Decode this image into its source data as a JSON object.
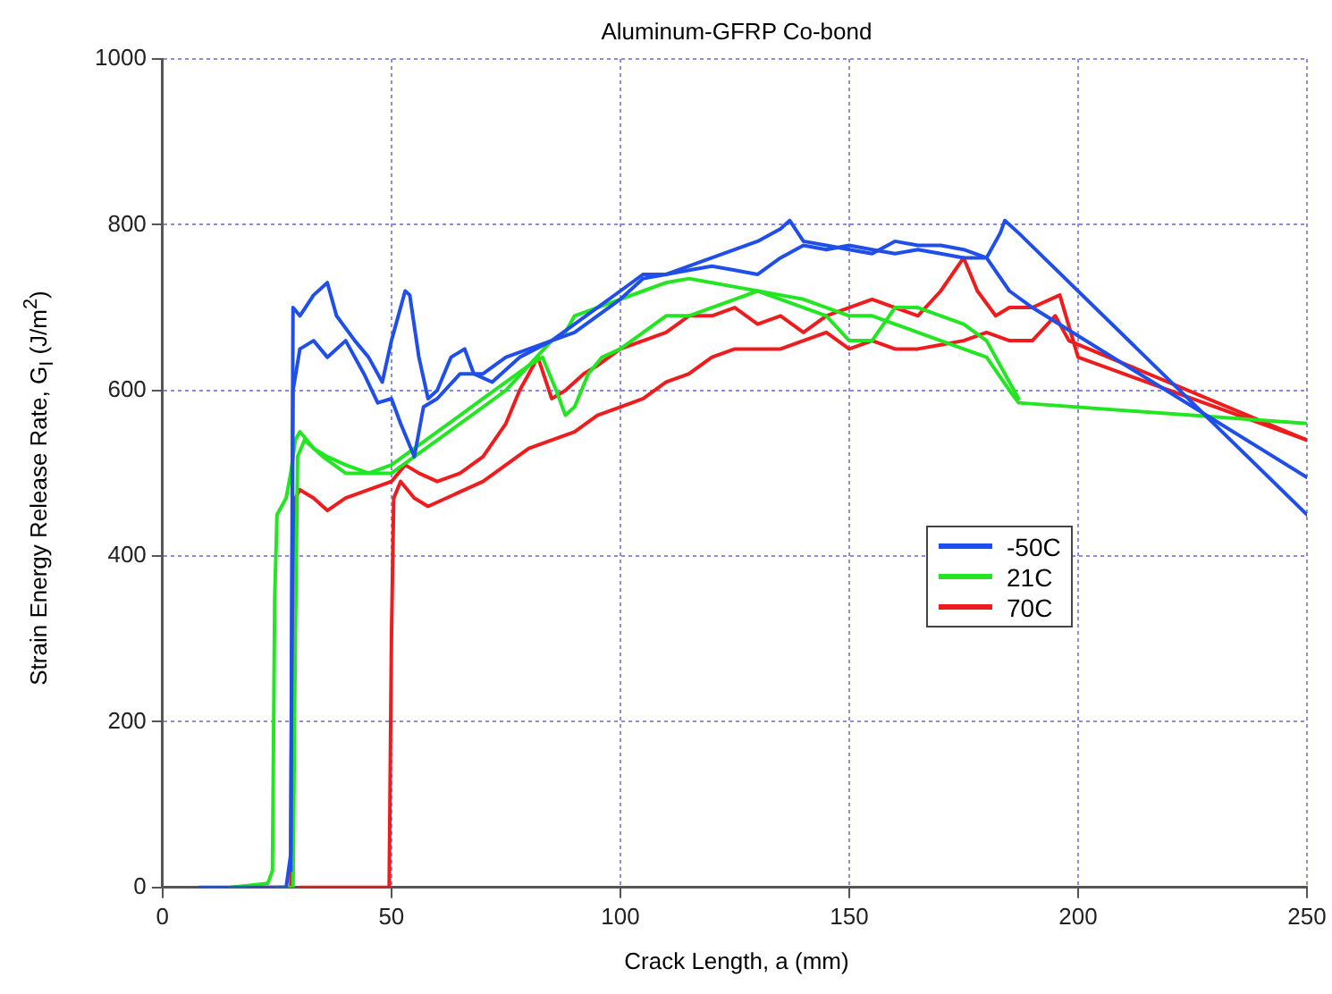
{
  "chart_data": {
    "type": "line",
    "title": "Aluminum-GFRP Co-bond",
    "xlabel": "Crack Length, a (mm)",
    "ylabel": "Strain Energy Release Rate, G$_{I}$ (J/m$^{2}$)",
    "xlim": [
      0,
      250
    ],
    "xticks": [
      0,
      50,
      100,
      150,
      200,
      250
    ],
    "ylim": [
      0,
      1000
    ],
    "yticks": [
      0,
      200,
      400,
      600,
      800,
      1000
    ],
    "grid": true,
    "legend": "right",
    "marker": "none",
    "line_style": "solid",
    "series": [
      {
        "name": "-50C",
        "color": "#1f4fe8",
        "x": [
          8,
          27,
          28,
          28.5,
          30,
          33,
          36,
          38,
          42,
          45,
          48,
          50,
          53,
          54,
          56,
          58,
          60,
          63,
          66,
          68,
          72,
          78,
          85,
          90,
          95,
          100,
          105,
          110,
          115,
          120,
          125,
          130,
          135,
          137,
          140,
          145,
          150,
          155,
          160,
          165,
          170,
          175,
          180,
          183,
          184,
          187,
          250
        ],
        "values": [
          0,
          0,
          40,
          700,
          690,
          715,
          730,
          690,
          660,
          640,
          610,
          660,
          720,
          715,
          640,
          590,
          600,
          640,
          650,
          620,
          610,
          640,
          660,
          680,
          700,
          720,
          740,
          740,
          750,
          760,
          770,
          780,
          795,
          805,
          780,
          775,
          770,
          765,
          780,
          775,
          775,
          770,
          760,
          790,
          805,
          790,
          450
        ]
      },
      {
        "color": "#1f4fe8",
        "x": [
          28,
          28.5,
          30,
          33,
          36,
          40,
          44,
          47,
          50,
          52,
          55,
          57,
          60,
          65,
          70,
          75,
          80,
          85,
          90,
          95,
          100,
          105,
          110,
          115,
          120,
          125,
          130,
          135,
          140,
          145,
          150,
          155,
          160,
          165,
          170,
          175,
          180,
          185,
          190,
          250
        ],
        "values": [
          20,
          600,
          650,
          660,
          640,
          660,
          620,
          585,
          590,
          560,
          520,
          580,
          590,
          620,
          620,
          640,
          650,
          660,
          670,
          690,
          710,
          735,
          740,
          745,
          750,
          745,
          740,
          760,
          775,
          770,
          775,
          770,
          765,
          770,
          765,
          760,
          760,
          720,
          700,
          495
        ]
      },
      {
        "name": "21C",
        "color": "#22e622",
        "x": [
          15,
          23,
          24,
          24.5,
          25,
          27,
          28,
          29,
          30,
          33,
          36,
          40,
          45,
          50,
          55,
          60,
          65,
          70,
          75,
          80,
          85,
          88,
          90,
          95,
          100,
          105,
          110,
          115,
          120,
          125,
          130,
          135,
          140,
          145,
          150,
          155,
          160,
          165,
          170,
          175,
          180,
          185,
          187,
          250
        ],
        "values": [
          0,
          5,
          20,
          350,
          450,
          470,
          500,
          540,
          550,
          530,
          520,
          510,
          500,
          500,
          520,
          540,
          560,
          580,
          600,
          630,
          660,
          670,
          690,
          700,
          710,
          720,
          730,
          735,
          730,
          725,
          720,
          715,
          710,
          700,
          690,
          690,
          680,
          670,
          660,
          650,
          640,
          600,
          585,
          560
        ]
      },
      {
        "color": "#22e622",
        "x": [
          25,
          28.5,
          29,
          29.5,
          31,
          35,
          40,
          45,
          50,
          55,
          60,
          65,
          70,
          75,
          80,
          83,
          86,
          88,
          90,
          93,
          96,
          100,
          105,
          110,
          115,
          120,
          125,
          130,
          135,
          140,
          145,
          150,
          155,
          160,
          165,
          170,
          175,
          180,
          185,
          187
        ],
        "values": [
          0,
          0,
          300,
          520,
          540,
          520,
          500,
          500,
          510,
          530,
          550,
          570,
          590,
          610,
          630,
          640,
          600,
          570,
          580,
          620,
          640,
          650,
          670,
          690,
          690,
          700,
          710,
          720,
          710,
          700,
          690,
          660,
          660,
          700,
          700,
          690,
          680,
          660,
          610,
          590
        ]
      },
      {
        "name": "70C",
        "color": "#ee1c1c",
        "x": [
          15,
          28,
          28.5,
          29,
          30,
          33,
          36,
          40,
          45,
          50,
          53,
          56,
          60,
          65,
          70,
          75,
          78,
          80,
          82,
          85,
          88,
          92,
          95,
          100,
          105,
          110,
          115,
          120,
          125,
          130,
          135,
          140,
          145,
          150,
          155,
          160,
          165,
          170,
          175,
          178,
          182,
          185,
          190,
          196,
          200,
          250
        ],
        "values": [
          0,
          0,
          300,
          470,
          480,
          470,
          455,
          470,
          480,
          490,
          510,
          500,
          490,
          500,
          520,
          560,
          600,
          620,
          640,
          590,
          600,
          620,
          630,
          650,
          660,
          670,
          690,
          690,
          700,
          680,
          690,
          670,
          690,
          700,
          710,
          700,
          690,
          720,
          760,
          720,
          690,
          700,
          700,
          715,
          640,
          540
        ]
      },
      {
        "color": "#ee1c1c",
        "x": [
          30,
          49.5,
          50,
          50.5,
          52,
          55,
          58,
          62,
          66,
          70,
          75,
          80,
          85,
          90,
          95,
          100,
          105,
          110,
          115,
          120,
          125,
          130,
          135,
          140,
          145,
          150,
          155,
          160,
          165,
          170,
          175,
          180,
          185,
          190,
          195,
          198,
          250
        ],
        "values": [
          0,
          0,
          300,
          470,
          490,
          470,
          460,
          470,
          480,
          490,
          510,
          530,
          540,
          550,
          570,
          580,
          590,
          610,
          620,
          640,
          650,
          650,
          650,
          660,
          670,
          650,
          660,
          650,
          650,
          655,
          660,
          670,
          660,
          660,
          690,
          660,
          540
        ]
      }
    ]
  }
}
